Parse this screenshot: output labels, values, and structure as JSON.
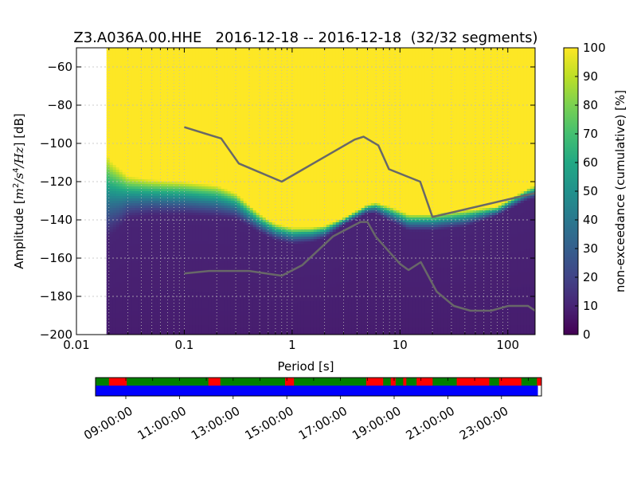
{
  "chart_data": {
    "type": "heatmap",
    "title": "Z3.A036A.00.HHE   2016-12-18 -- 2016-12-18  (32/32 segments)",
    "xlabel": "Period [s]",
    "ylabel": "Amplitude [m²/s⁴/Hz] [dB]",
    "ylabel_parts": [
      "Amplitude [",
      "m",
      "2",
      "/",
      "s",
      "4",
      "/",
      "Hz",
      "] [dB]"
    ],
    "xscale": "log",
    "xlim": [
      0.01,
      179
    ],
    "ylim": [
      -200,
      -50
    ],
    "xticks": [
      0.01,
      0.1,
      1,
      10,
      100
    ],
    "xtick_labels": [
      "0.01",
      "0.1",
      "1",
      "10",
      "100"
    ],
    "yticks": [
      -200,
      -180,
      -160,
      -140,
      -120,
      -100,
      -80,
      -60
    ],
    "ytick_labels": [
      "−200",
      "−180",
      "−160",
      "−140",
      "−120",
      "−100",
      "−80",
      "−60"
    ],
    "grid": true,
    "colormap": "viridis",
    "data_period_start": 0.019,
    "colorbar": {
      "label": "non-exceedance (cumulative) [%]",
      "range": [
        0,
        100
      ],
      "ticks": [
        0,
        10,
        20,
        30,
        40,
        50,
        60,
        70,
        80,
        90,
        100
      ],
      "tick_labels": [
        "0",
        "10",
        "20",
        "30",
        "40",
        "50",
        "60",
        "70",
        "80",
        "90",
        "100"
      ]
    },
    "distribution_edges": [
      {
        "period": 0.019,
        "low": -150,
        "high": -104
      },
      {
        "period": 0.02,
        "low": -150,
        "high": -108
      },
      {
        "period": 0.025,
        "low": -145,
        "high": -113
      },
      {
        "period": 0.03,
        "low": -140,
        "high": -117
      },
      {
        "period": 0.05,
        "low": -138,
        "high": -119
      },
      {
        "period": 0.1,
        "low": -138,
        "high": -120
      },
      {
        "period": 0.2,
        "low": -139,
        "high": -122
      },
      {
        "period": 0.3,
        "low": -140,
        "high": -126
      },
      {
        "period": 0.5,
        "low": -147,
        "high": -137
      },
      {
        "period": 0.7,
        "low": -151,
        "high": -142
      },
      {
        "period": 1,
        "low": -153,
        "high": -144
      },
      {
        "period": 1.5,
        "low": -152,
        "high": -144
      },
      {
        "period": 2,
        "low": -150,
        "high": -143
      },
      {
        "period": 3,
        "low": -143,
        "high": -139
      },
      {
        "period": 5,
        "low": -137,
        "high": -132
      },
      {
        "period": 6,
        "low": -137,
        "high": -131
      },
      {
        "period": 8,
        "low": -141,
        "high": -133
      },
      {
        "period": 12,
        "low": -146,
        "high": -137
      },
      {
        "period": 20,
        "low": -146,
        "high": -137
      },
      {
        "period": 40,
        "low": -144,
        "high": -135
      },
      {
        "period": 80,
        "low": -138,
        "high": -133
      },
      {
        "period": 150,
        "low": -130,
        "high": -124
      },
      {
        "period": 179,
        "low": -129,
        "high": -122
      }
    ],
    "noise_models": [
      {
        "values": [
          [
            0.1,
            -91.5
          ],
          [
            0.22,
            -97.4
          ],
          [
            0.32,
            -110.5
          ],
          [
            0.8,
            -120
          ],
          [
            3.8,
            -98
          ],
          [
            4.6,
            -96.5
          ],
          [
            6.3,
            -101
          ],
          [
            7.9,
            -113.5
          ],
          [
            15.4,
            -120
          ],
          [
            20,
            -138.5
          ],
          [
            354.8,
            -126
          ]
        ]
      },
      {
        "values": [
          [
            0.1,
            -168
          ],
          [
            0.17,
            -166.7
          ],
          [
            0.4,
            -166.7
          ],
          [
            0.8,
            -169.2
          ],
          [
            1.24,
            -163.7
          ],
          [
            2.4,
            -148.6
          ],
          [
            4.3,
            -141.1
          ],
          [
            5,
            -141.1
          ],
          [
            6,
            -149
          ],
          [
            10,
            -163
          ],
          [
            12,
            -166.2
          ],
          [
            15.6,
            -162.1
          ],
          [
            21.9,
            -177.5
          ],
          [
            31.6,
            -185
          ],
          [
            45,
            -187.5
          ],
          [
            70,
            -187.5
          ],
          [
            101,
            -185
          ],
          [
            154,
            -185
          ],
          [
            328,
            -187.5
          ]
        ]
      }
    ],
    "timeline": {
      "tick_labels": [
        "09:00:00",
        "11:00:00",
        "13:00:00",
        "15:00:00",
        "17:00:00",
        "19:00:00",
        "21:00:00",
        "23:00:00"
      ],
      "status_colors": {
        "good": "#007f00",
        "gap": "#ff0000",
        "coverage": "#0000ff"
      },
      "gap_segments": [
        [
          0.03,
          0.07
        ],
        [
          0.253,
          0.28
        ],
        [
          0.425,
          0.445
        ],
        [
          0.607,
          0.645
        ],
        [
          0.662,
          0.673
        ],
        [
          0.69,
          0.697
        ],
        [
          0.72,
          0.756
        ],
        [
          0.81,
          0.883
        ],
        [
          0.905,
          0.955
        ],
        [
          0.99,
          1.0
        ]
      ],
      "coverage": [
        0.0,
        0.992
      ]
    }
  }
}
